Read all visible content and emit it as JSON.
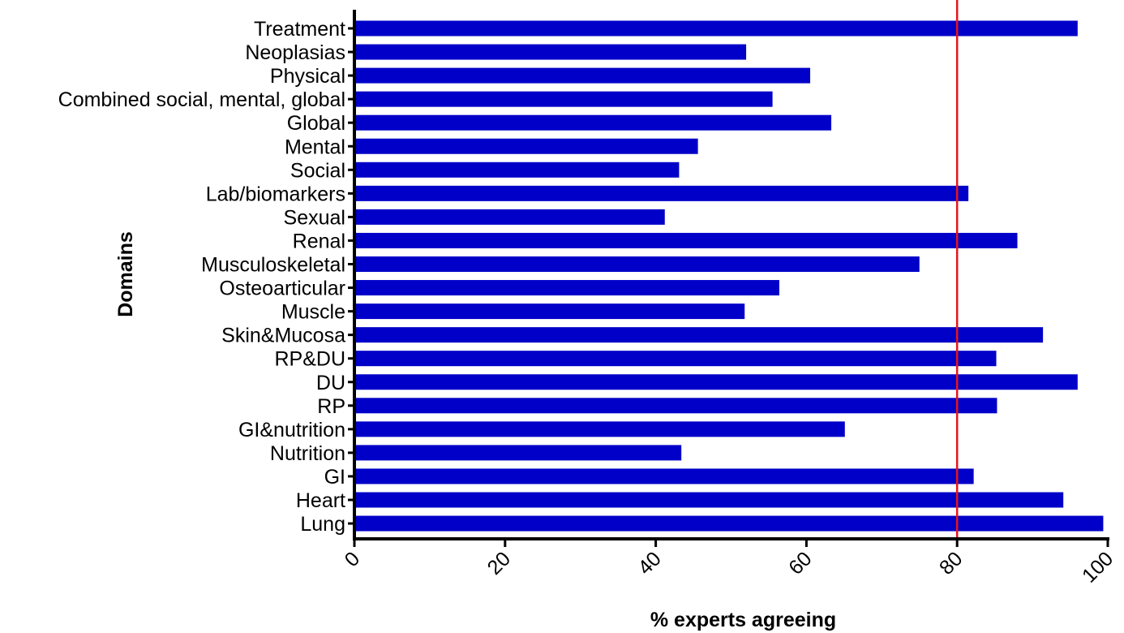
{
  "chart_data": {
    "type": "bar",
    "orientation": "horizontal",
    "title": "",
    "xlabel": "% experts agreeing",
    "ylabel": "Domains",
    "xlim": [
      0,
      100
    ],
    "xticks": [
      0,
      20,
      40,
      60,
      80,
      100
    ],
    "grid": false,
    "bar_color": "#0000C8",
    "reference_line": {
      "x": 80,
      "color": "#E8141B"
    },
    "categories": [
      "Treatment",
      "Neoplasias",
      "Physical",
      "Combined social, mental, global",
      "Global",
      "Mental",
      "Social",
      "Lab/biomarkers",
      "Sexual",
      "Renal",
      "Musculoskeletal",
      "Osteoarticular",
      "Muscle",
      "Skin&Mucosa",
      "RP&DU",
      "DU",
      "RP",
      "GI&nutrition",
      "Nutrition",
      "GI",
      "Heart",
      "Lung"
    ],
    "values": [
      96,
      52,
      60.5,
      55.5,
      63.3,
      45.6,
      43.1,
      81.5,
      41.2,
      88,
      75,
      56.4,
      51.8,
      91.4,
      85.2,
      96,
      85.3,
      65.1,
      43.4,
      82.2,
      94.1,
      99.4
    ]
  }
}
